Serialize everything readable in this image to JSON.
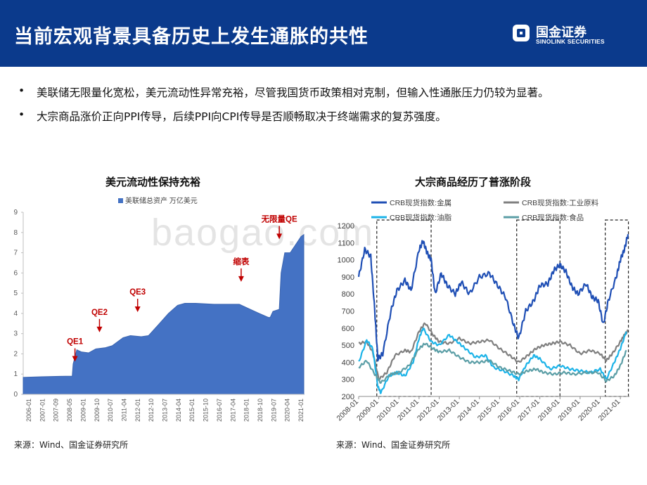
{
  "header": {
    "title": "当前宏观背景具备历史上发生通胀的共性",
    "logo_cn": "国金证券",
    "logo_en": "SINOLINK SECURITIES"
  },
  "bullets": [
    {
      "marker": "•",
      "text": "美联储无限量化宽松，美元流动性异常充裕，尽管我国货币政策相对克制，但输入性通胀压力仍较为显著。"
    },
    {
      "marker": "•",
      "text": "大宗商品涨价正向PPI传导，后续PPI向CPI传导是否顺畅取决于终端需求的复苏强度。"
    }
  ],
  "watermark": "baogao.com",
  "colors": {
    "header": "#0b3a8c",
    "area": "#4472c4",
    "metal": "#1f4fb5",
    "industrial": "#7f7f7f",
    "oil": "#1bb3e8",
    "food": "#5b9ea6",
    "annotation": "#c00000"
  },
  "chart_data": [
    {
      "type": "area",
      "title": "美元流动性保持充裕",
      "legend": [
        "美联储总资产 万亿美元"
      ],
      "ylim": [
        0,
        9
      ],
      "yticks": [
        "0",
        "1",
        "2",
        "3",
        "4",
        "5",
        "6",
        "7",
        "8",
        "9"
      ],
      "xticks": [
        "2006-01",
        "2007-01",
        "2007-09",
        "2008-05",
        "2009-01",
        "2009-10",
        "2010-07",
        "2011-04",
        "2012-01",
        "2012-10",
        "2013-07",
        "2014-04",
        "2015-01",
        "2015-10",
        "2016-07",
        "2017-04",
        "2018-01",
        "2018-10",
        "2019-07",
        "2020-04",
        "2021-01"
      ],
      "series": [
        {
          "name": "美联储总资产 万亿美元",
          "points": [
            [
              2006.0,
              0.84
            ],
            [
              2007.0,
              0.87
            ],
            [
              2008.0,
              0.89
            ],
            [
              2008.7,
              0.9
            ],
            [
              2008.75,
              1.5
            ],
            [
              2008.95,
              2.2
            ],
            [
              2009.2,
              2.1
            ],
            [
              2009.6,
              2.05
            ],
            [
              2010.0,
              2.25
            ],
            [
              2010.5,
              2.3
            ],
            [
              2010.9,
              2.4
            ],
            [
              2011.5,
              2.8
            ],
            [
              2011.9,
              2.9
            ],
            [
              2012.5,
              2.85
            ],
            [
              2012.9,
              2.9
            ],
            [
              2013.5,
              3.5
            ],
            [
              2014.0,
              4.0
            ],
            [
              2014.5,
              4.4
            ],
            [
              2014.9,
              4.5
            ],
            [
              2015.5,
              4.5
            ],
            [
              2016.5,
              4.45
            ],
            [
              2017.5,
              4.45
            ],
            [
              2017.9,
              4.45
            ],
            [
              2018.5,
              4.2
            ],
            [
              2019.0,
              4.0
            ],
            [
              2019.5,
              3.8
            ],
            [
              2019.6,
              3.8
            ],
            [
              2019.75,
              4.1
            ],
            [
              2020.1,
              4.2
            ],
            [
              2020.2,
              6.0
            ],
            [
              2020.4,
              7.0
            ],
            [
              2020.7,
              7.0
            ],
            [
              2021.0,
              7.4
            ],
            [
              2021.3,
              7.8
            ],
            [
              2021.45,
              7.9
            ]
          ]
        }
      ],
      "annotations": [
        {
          "label": "QE1",
          "x": 2008.85,
          "y": 1.65
        },
        {
          "label": "QE2",
          "x": 2010.2,
          "y": 3.1
        },
        {
          "label": "QE3",
          "x": 2012.3,
          "y": 4.1
        },
        {
          "label": "缩表",
          "x": 2018.0,
          "y": 5.6
        },
        {
          "label": "无限量QE",
          "x": 2020.1,
          "y": 7.7
        }
      ]
    },
    {
      "type": "line",
      "title": "大宗商品经历了普涨阶段",
      "ylim": [
        200,
        1200
      ],
      "yticks": [
        "200",
        "300",
        "400",
        "500",
        "600",
        "700",
        "800",
        "900",
        "1000",
        "1100",
        "1200"
      ],
      "xticks": [
        "2008-01",
        "2009-01",
        "2010-01",
        "2011-01",
        "2012-01",
        "2013-01",
        "2014-01",
        "2015-01",
        "2016-01",
        "2017-01",
        "2018-01",
        "2019-01",
        "2020-01",
        "2021-01"
      ],
      "highlight_periods": [
        [
          2008.9,
          2011.6
        ],
        [
          2015.85,
          2018.0
        ],
        [
          2020.25,
          2021.4
        ]
      ],
      "series": [
        {
          "name": "CRB现货指数:金属",
          "color_key": "metal",
          "points": [
            [
              2008.0,
              900
            ],
            [
              2008.3,
              1060
            ],
            [
              2008.6,
              1020
            ],
            [
              2008.8,
              700
            ],
            [
              2008.95,
              420
            ],
            [
              2009.2,
              450
            ],
            [
              2009.6,
              700
            ],
            [
              2009.9,
              820
            ],
            [
              2010.3,
              880
            ],
            [
              2010.6,
              820
            ],
            [
              2011.0,
              1060
            ],
            [
              2011.2,
              1110
            ],
            [
              2011.4,
              1040
            ],
            [
              2011.6,
              1000
            ],
            [
              2011.8,
              800
            ],
            [
              2012.1,
              920
            ],
            [
              2012.4,
              850
            ],
            [
              2012.8,
              800
            ],
            [
              2013.1,
              870
            ],
            [
              2013.5,
              800
            ],
            [
              2014.0,
              900
            ],
            [
              2014.5,
              920
            ],
            [
              2014.9,
              850
            ],
            [
              2015.3,
              780
            ],
            [
              2015.7,
              620
            ],
            [
              2015.95,
              540
            ],
            [
              2016.3,
              700
            ],
            [
              2016.7,
              760
            ],
            [
              2017.0,
              850
            ],
            [
              2017.4,
              860
            ],
            [
              2017.7,
              940
            ],
            [
              2018.0,
              970
            ],
            [
              2018.3,
              930
            ],
            [
              2018.6,
              840
            ],
            [
              2018.9,
              800
            ],
            [
              2019.3,
              860
            ],
            [
              2019.6,
              780
            ],
            [
              2019.9,
              760
            ],
            [
              2020.15,
              620
            ],
            [
              2020.4,
              760
            ],
            [
              2020.8,
              900
            ],
            [
              2021.0,
              1000
            ],
            [
              2021.2,
              1060
            ],
            [
              2021.38,
              1150
            ]
          ]
        },
        {
          "name": "CRB现货指数:工业原料",
          "color_key": "industrial",
          "points": [
            [
              2008.0,
              510
            ],
            [
              2008.4,
              520
            ],
            [
              2008.7,
              460
            ],
            [
              2009.0,
              300
            ],
            [
              2009.4,
              340
            ],
            [
              2009.8,
              440
            ],
            [
              2010.3,
              470
            ],
            [
              2010.6,
              460
            ],
            [
              2011.0,
              580
            ],
            [
              2011.3,
              630
            ],
            [
              2011.7,
              560
            ],
            [
              2012.0,
              520
            ],
            [
              2012.5,
              510
            ],
            [
              2013.0,
              540
            ],
            [
              2013.5,
              510
            ],
            [
              2014.0,
              520
            ],
            [
              2014.5,
              530
            ],
            [
              2015.0,
              480
            ],
            [
              2015.5,
              440
            ],
            [
              2015.95,
              400
            ],
            [
              2016.4,
              440
            ],
            [
              2016.8,
              480
            ],
            [
              2017.2,
              500
            ],
            [
              2017.6,
              510
            ],
            [
              2018.0,
              520
            ],
            [
              2018.5,
              500
            ],
            [
              2019.0,
              450
            ],
            [
              2019.5,
              470
            ],
            [
              2020.0,
              450
            ],
            [
              2020.3,
              410
            ],
            [
              2020.6,
              450
            ],
            [
              2021.0,
              520
            ],
            [
              2021.2,
              560
            ],
            [
              2021.38,
              585
            ]
          ]
        },
        {
          "name": "CRB现货指数:油脂",
          "color_key": "oil",
          "points": [
            [
              2008.0,
              400
            ],
            [
              2008.4,
              530
            ],
            [
              2008.7,
              480
            ],
            [
              2008.95,
              260
            ],
            [
              2009.1,
              220
            ],
            [
              2009.5,
              320
            ],
            [
              2009.9,
              340
            ],
            [
              2010.3,
              320
            ],
            [
              2010.7,
              400
            ],
            [
              2011.0,
              540
            ],
            [
              2011.2,
              600
            ],
            [
              2011.6,
              520
            ],
            [
              2012.0,
              500
            ],
            [
              2012.5,
              560
            ],
            [
              2012.9,
              520
            ],
            [
              2013.3,
              480
            ],
            [
              2013.8,
              430
            ],
            [
              2014.3,
              440
            ],
            [
              2014.7,
              370
            ],
            [
              2015.2,
              350
            ],
            [
              2015.7,
              320
            ],
            [
              2015.95,
              300
            ],
            [
              2016.3,
              380
            ],
            [
              2016.7,
              440
            ],
            [
              2017.0,
              420
            ],
            [
              2017.5,
              360
            ],
            [
              2018.0,
              380
            ],
            [
              2018.5,
              360
            ],
            [
              2019.0,
              350
            ],
            [
              2019.5,
              340
            ],
            [
              2020.0,
              360
            ],
            [
              2020.3,
              300
            ],
            [
              2020.7,
              400
            ],
            [
              2021.0,
              480
            ],
            [
              2021.3,
              580
            ]
          ]
        },
        {
          "name": "CRB现货指数:食品",
          "color_key": "food",
          "points": [
            [
              2008.0,
              370
            ],
            [
              2008.4,
              410
            ],
            [
              2008.8,
              330
            ],
            [
              2009.1,
              280
            ],
            [
              2009.6,
              330
            ],
            [
              2010.0,
              340
            ],
            [
              2010.5,
              380
            ],
            [
              2011.0,
              480
            ],
            [
              2011.3,
              510
            ],
            [
              2011.7,
              480
            ],
            [
              2012.0,
              460
            ],
            [
              2012.5,
              470
            ],
            [
              2013.0,
              430
            ],
            [
              2013.5,
              400
            ],
            [
              2014.0,
              400
            ],
            [
              2014.5,
              410
            ],
            [
              2015.0,
              370
            ],
            [
              2015.5,
              350
            ],
            [
              2015.95,
              330
            ],
            [
              2016.4,
              350
            ],
            [
              2016.8,
              360
            ],
            [
              2017.2,
              340
            ],
            [
              2017.7,
              330
            ],
            [
              2018.2,
              340
            ],
            [
              2018.7,
              330
            ],
            [
              2019.3,
              340
            ],
            [
              2019.9,
              340
            ],
            [
              2020.3,
              290
            ],
            [
              2020.7,
              320
            ],
            [
              2021.0,
              380
            ],
            [
              2021.3,
              470
            ]
          ]
        }
      ]
    }
  ],
  "sources": [
    "来源：Wind、国金证券研究所",
    "来源：Wind、国金证券研究所"
  ]
}
